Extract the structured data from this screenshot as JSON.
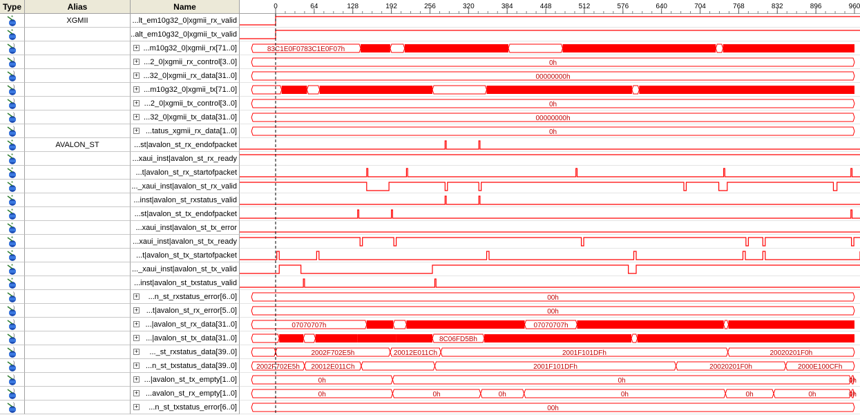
{
  "headers": {
    "type": "Type",
    "alias": "Alias",
    "name": "Name"
  },
  "timescale": {
    "ticks": [
      "0",
      "64",
      "128",
      "192",
      "256",
      "320",
      "384",
      "448",
      "512",
      "576",
      "640",
      "704",
      "768",
      "832",
      "896",
      "960"
    ],
    "max": 960
  },
  "colors": {
    "wave": "#ff0000",
    "cursor": "#000000",
    "text": "#c00000"
  },
  "signals": [
    {
      "alias": "XGMII",
      "name": "...lt_em10g32_0|xgmii_rx_valid",
      "icon": "input-pin-icon",
      "bus": false,
      "high": [
        [
          0,
          960
        ]
      ]
    },
    {
      "alias": "",
      "name": "...alt_em10g32_0|xgmii_tx_valid",
      "icon": "input-pin-icon",
      "bus": false,
      "high": [
        [
          0,
          960
        ]
      ]
    },
    {
      "alias": "",
      "name": "...m10g32_0|xgmii_rx[71..0]",
      "icon": "bus-input-icon",
      "bus": true,
      "segs": [
        [
          -40,
          141,
          false,
          "83C1E0F0783C1E0F07h"
        ],
        [
          141,
          190,
          true,
          ""
        ],
        [
          190,
          214,
          false,
          ""
        ],
        [
          214,
          386,
          true,
          ""
        ],
        [
          386,
          476,
          false,
          ""
        ],
        [
          476,
          730,
          true,
          ""
        ],
        [
          730,
          742,
          false,
          ""
        ],
        [
          742,
          960,
          true,
          ""
        ]
      ]
    },
    {
      "alias": "",
      "name": "...2_0|xgmii_rx_control[3..0]",
      "icon": "bus-input-icon",
      "bus": true,
      "segs": [
        [
          -40,
          960,
          false,
          "0h"
        ]
      ]
    },
    {
      "alias": "",
      "name": "...32_0|xgmii_rx_data[31..0]",
      "icon": "bus-input-icon",
      "bus": true,
      "segs": [
        [
          -40,
          960,
          false,
          "00000000h"
        ]
      ]
    },
    {
      "alias": "",
      "name": "...m10g32_0|xgmii_tx[71..0]",
      "icon": "bus-input-icon",
      "bus": true,
      "segs": [
        [
          -40,
          10,
          false,
          ""
        ],
        [
          10,
          52,
          true,
          ""
        ],
        [
          52,
          73,
          false,
          ""
        ],
        [
          73,
          260,
          true,
          ""
        ],
        [
          260,
          350,
          false,
          ""
        ],
        [
          350,
          591,
          true,
          ""
        ],
        [
          591,
          603,
          false,
          ""
        ],
        [
          603,
          960,
          true,
          ""
        ]
      ]
    },
    {
      "alias": "",
      "name": "...2_0|xgmii_tx_control[3..0]",
      "icon": "bus-input-icon",
      "bus": true,
      "segs": [
        [
          -40,
          960,
          false,
          "0h"
        ]
      ]
    },
    {
      "alias": "",
      "name": "...32_0|xgmii_tx_data[31..0]",
      "icon": "bus-input-icon",
      "bus": true,
      "segs": [
        [
          -40,
          960,
          false,
          "00000000h"
        ]
      ]
    },
    {
      "alias": "",
      "name": "...tatus_xgmii_rx_data[1..0]",
      "icon": "bus-input-icon",
      "bus": true,
      "segs": [
        [
          -40,
          960,
          false,
          "0h"
        ]
      ]
    },
    {
      "alias": "AVALON_ST",
      "name": "...st|avalon_st_rx_endofpacket",
      "icon": "input-pin-icon",
      "bus": false,
      "high": [
        [
          281,
          283
        ],
        [
          337,
          339
        ]
      ]
    },
    {
      "alias": "",
      "name": "...xaui_inst|avalon_st_rx_ready",
      "icon": "input-pin-icon",
      "bus": false,
      "high": [
        [
          -40,
          960
        ]
      ]
    },
    {
      "alias": "",
      "name": "...t|avalon_st_rx_startofpacket",
      "icon": "input-pin-icon",
      "bus": false,
      "high": [
        [
          151,
          153
        ],
        [
          217,
          219
        ],
        [
          498,
          500
        ],
        [
          743,
          745
        ],
        [
          954,
          956
        ]
      ]
    },
    {
      "alias": "",
      "name": "..._xaui_inst|avalon_st_rx_valid",
      "icon": "input-pin-icon",
      "bus": false,
      "high": [
        [
          -40,
          151
        ],
        [
          188,
          281
        ],
        [
          285,
          337
        ],
        [
          341,
          677
        ],
        [
          681,
          735
        ],
        [
          749,
          925
        ],
        [
          931,
          960
        ]
      ]
    },
    {
      "alias": "",
      "name": "...inst|avalon_st_rxstatus_valid",
      "icon": "input-pin-icon",
      "bus": false,
      "high": [
        [
          281,
          283
        ],
        [
          337,
          339
        ]
      ]
    },
    {
      "alias": "",
      "name": "...st|avalon_st_tx_endofpacket",
      "icon": "input-pin-icon",
      "bus": false,
      "high": [
        [
          136,
          138
        ],
        [
          192,
          194
        ],
        [
          954,
          956
        ]
      ]
    },
    {
      "alias": "",
      "name": "...xaui_inst|avalon_st_tx_error",
      "icon": "input-pin-icon",
      "bus": false,
      "high": []
    },
    {
      "alias": "",
      "name": "...xaui_inst|avalon_st_tx_ready",
      "icon": "input-pin-icon",
      "bus": false,
      "high": [
        [
          -40,
          140
        ],
        [
          144,
          196
        ],
        [
          200,
          507
        ],
        [
          511,
          780
        ],
        [
          784,
          808
        ],
        [
          812,
          955
        ],
        [
          959,
          960
        ]
      ]
    },
    {
      "alias": "",
      "name": "...t|avalon_st_tx_startofpacket",
      "icon": "input-pin-icon",
      "bus": false,
      "high": [
        [
          2,
          6
        ],
        [
          68,
          72
        ],
        [
          350,
          354
        ],
        [
          594,
          598
        ],
        [
          775,
          779
        ],
        [
          808,
          812
        ],
        [
          970,
          972
        ]
      ]
    },
    {
      "alias": "",
      "name": "..._xaui_inst|avalon_st_tx_valid",
      "icon": "input-pin-icon",
      "bus": false,
      "high": [
        [
          6,
          42
        ],
        [
          260,
          585
        ],
        [
          598,
          960
        ]
      ]
    },
    {
      "alias": "",
      "name": "...inst|avalon_st_txstatus_valid",
      "icon": "input-pin-icon",
      "bus": false,
      "high": [
        [
          46,
          48
        ],
        [
          264,
          266
        ]
      ]
    },
    {
      "alias": "",
      "name": "...n_st_rxstatus_error[6..0]",
      "icon": "bus-input-icon",
      "bus": true,
      "segs": [
        [
          -40,
          960,
          false,
          "00h"
        ]
      ]
    },
    {
      "alias": "",
      "name": "...t|avalon_st_rx_error[5..0]",
      "icon": "bus-input-icon",
      "bus": true,
      "segs": [
        [
          -40,
          960,
          false,
          "00h"
        ]
      ]
    },
    {
      "alias": "",
      "name": "...|avalon_st_rx_data[31..0]",
      "icon": "bus-input-icon",
      "bus": true,
      "segs": [
        [
          -40,
          151,
          false,
          "07070707h"
        ],
        [
          151,
          195,
          true,
          ""
        ],
        [
          195,
          217,
          false,
          ""
        ],
        [
          217,
          413,
          true,
          ""
        ],
        [
          413,
          500,
          false,
          "07070707h"
        ],
        [
          500,
          743,
          true,
          ""
        ],
        [
          743,
          751,
          false,
          ""
        ],
        [
          751,
          960,
          true,
          ""
        ]
      ]
    },
    {
      "alias": "",
      "name": "...|avalon_st_tx_data[31..0]",
      "icon": "bus-input-icon",
      "bus": true,
      "segs": [
        [
          -40,
          6,
          false,
          ""
        ],
        [
          6,
          46,
          true,
          ""
        ],
        [
          46,
          66,
          false,
          ""
        ],
        [
          66,
          136,
          true,
          ""
        ],
        [
          136,
          200,
          true,
          ""
        ],
        [
          200,
          260,
          true,
          ""
        ],
        [
          260,
          346,
          false,
          "8C06FD5Bh"
        ],
        [
          346,
          590,
          true,
          ""
        ],
        [
          590,
          600,
          false,
          ""
        ],
        [
          600,
          960,
          true,
          ""
        ]
      ]
    },
    {
      "alias": "",
      "name": "..._st_rxstatus_data[39..0]",
      "icon": "bus-input-icon",
      "bus": true,
      "segs": [
        [
          -40,
          0,
          false,
          ""
        ],
        [
          0,
          190,
          false,
          "2002F702E5h"
        ],
        [
          190,
          274,
          false,
          "20012E011Ch"
        ],
        [
          274,
          750,
          false,
          "2001F101DFh"
        ],
        [
          750,
          960,
          false,
          "20020201F0h"
        ]
      ]
    },
    {
      "alias": "",
      "name": "...n_st_txstatus_data[39..0]",
      "icon": "bus-input-icon",
      "bus": true,
      "segs": [
        [
          -40,
          48,
          false,
          "2002F702E5h"
        ],
        [
          48,
          142,
          false,
          "20012E011Ch"
        ],
        [
          142,
          264,
          false,
          ""
        ],
        [
          264,
          664,
          false,
          "2001F101DFh"
        ],
        [
          664,
          846,
          false,
          "20020201F0h"
        ],
        [
          846,
          960,
          false,
          "2000E100CFh"
        ]
      ]
    },
    {
      "alias": "",
      "name": "...|avalon_st_tx_empty[1..0]",
      "icon": "bus-input-icon",
      "bus": true,
      "segs": [
        [
          -40,
          194,
          false,
          "0h"
        ],
        [
          194,
          954,
          false,
          "0h"
        ],
        [
          954,
          960,
          false,
          "0h"
        ]
      ]
    },
    {
      "alias": "",
      "name": "...avalon_st_rx_empty[1..0]",
      "icon": "bus-input-icon",
      "bus": true,
      "segs": [
        [
          -40,
          194,
          false,
          "0h"
        ],
        [
          194,
          340,
          false,
          "0h"
        ],
        [
          340,
          412,
          false,
          "0h"
        ],
        [
          412,
          746,
          false,
          "0h"
        ],
        [
          746,
          826,
          false,
          "0h"
        ],
        [
          826,
          954,
          false,
          "0h"
        ],
        [
          954,
          960,
          false,
          "0h"
        ]
      ]
    },
    {
      "alias": "",
      "name": "...n_st_txstatus_error[6..0]",
      "icon": "bus-input-icon",
      "bus": true,
      "segs": [
        [
          -40,
          960,
          false,
          "00h"
        ]
      ]
    }
  ]
}
